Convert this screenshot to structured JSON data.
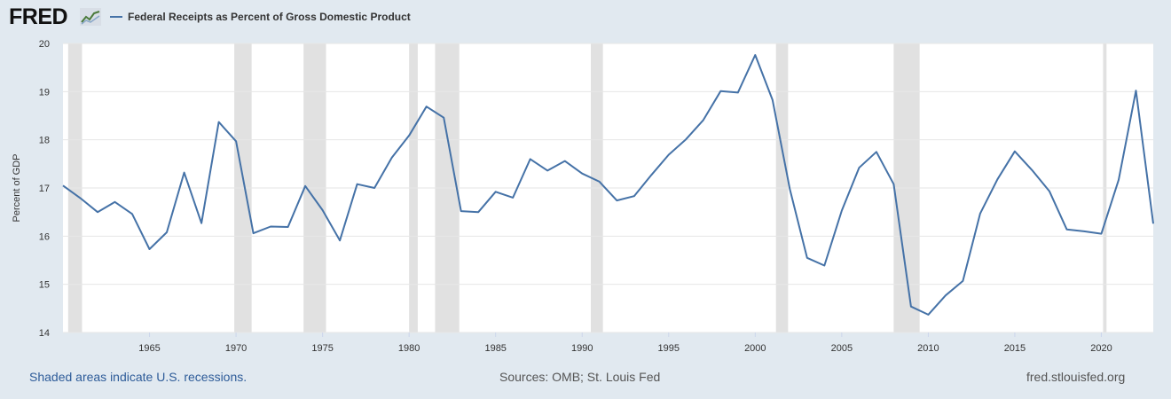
{
  "header": {
    "logo_text": "FRED",
    "logo_icon": "chart-trend-icon"
  },
  "chart_data": {
    "type": "line",
    "title": "",
    "xlabel": "",
    "ylabel": "Percent of GDP",
    "ylim": [
      14,
      20
    ],
    "xlim": [
      1960.0,
      2023.0
    ],
    "grid": true,
    "legend_position": "top-left",
    "yticks": [
      "14",
      "15",
      "16",
      "17",
      "18",
      "19",
      "20"
    ],
    "xticks": [
      "1965",
      "1970",
      "1975",
      "1980",
      "1985",
      "1990",
      "1995",
      "2000",
      "2005",
      "2010",
      "2015",
      "2020"
    ],
    "series": [
      {
        "name": "Federal Receipts as Percent of Gross Domestic Product",
        "color": "#4572a7",
        "x": [
          1960,
          1961,
          1962,
          1963,
          1964,
          1965,
          1966,
          1967,
          1968,
          1969,
          1970,
          1971,
          1972,
          1973,
          1974,
          1975,
          1976,
          1977,
          1978,
          1979,
          1980,
          1981,
          1982,
          1983,
          1984,
          1985,
          1986,
          1987,
          1988,
          1989,
          1990,
          1991,
          1992,
          1993,
          1994,
          1995,
          1996,
          1997,
          1998,
          1999,
          2000,
          2001,
          2002,
          2003,
          2004,
          2005,
          2006,
          2007,
          2008,
          2009,
          2010,
          2011,
          2012,
          2013,
          2014,
          2015,
          2016,
          2017,
          2018,
          2019,
          2020,
          2021,
          2022,
          2023
        ],
        "values": [
          17.05,
          16.79,
          16.5,
          16.71,
          16.46,
          15.73,
          16.08,
          17.32,
          16.27,
          18.37,
          17.97,
          16.06,
          16.2,
          16.19,
          17.04,
          16.54,
          15.91,
          17.08,
          17.0,
          17.63,
          18.09,
          18.69,
          18.46,
          16.52,
          16.5,
          16.92,
          16.8,
          17.6,
          17.36,
          17.56,
          17.3,
          17.13,
          16.74,
          16.83,
          17.27,
          17.69,
          18.01,
          18.41,
          19.01,
          18.98,
          19.76,
          18.83,
          16.98,
          15.55,
          15.39,
          16.53,
          17.42,
          17.75,
          17.08,
          14.54,
          14.37,
          14.77,
          15.07,
          16.47,
          17.18,
          17.76,
          17.37,
          16.93,
          16.14,
          16.1,
          16.05,
          17.17,
          19.02,
          16.26
        ]
      }
    ],
    "recessions": [
      [
        1960.3,
        1961.1
      ],
      [
        1969.9,
        1970.9
      ],
      [
        1973.9,
        1975.2
      ],
      [
        1980.0,
        1980.5
      ],
      [
        1981.5,
        1982.9
      ],
      [
        1990.5,
        1991.2
      ],
      [
        2001.2,
        2001.9
      ],
      [
        2008.0,
        2009.5
      ],
      [
        2020.1,
        2020.3
      ]
    ],
    "recession_color": "#e1e1e1"
  },
  "footer": {
    "recession_note": "Shaded areas indicate U.S. recessions.",
    "sources": "Sources: OMB; St. Louis Fed",
    "site": "fred.stlouisfed.org"
  }
}
